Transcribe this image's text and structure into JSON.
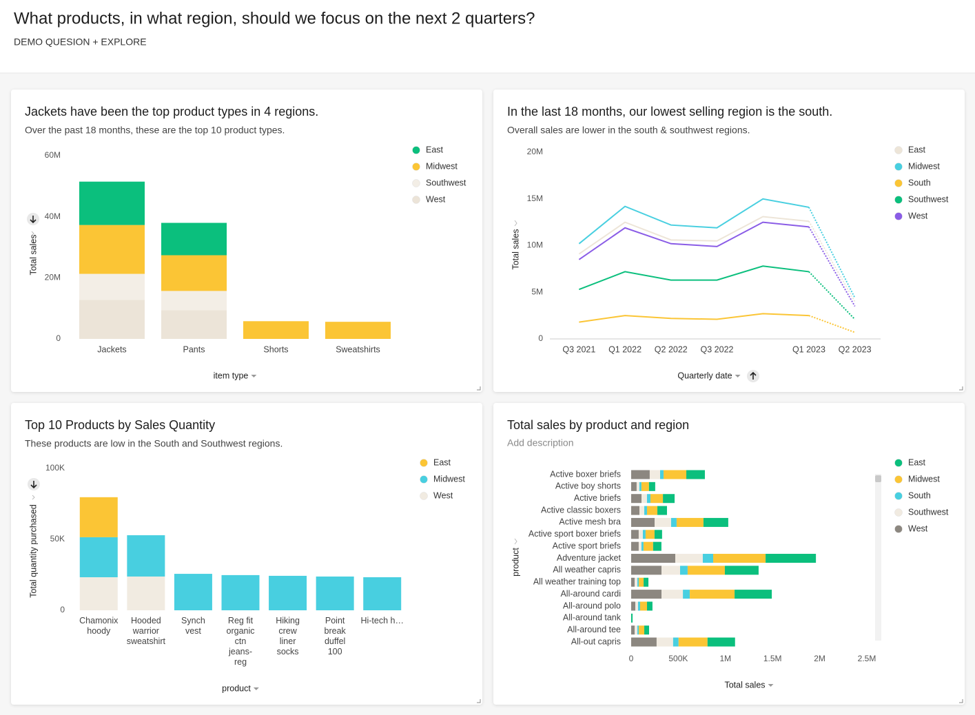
{
  "header": {
    "title": "What products, in what region, should we focus on the next 2 quarters?",
    "subtitle": "DEMO QUESION + EXPLORE"
  },
  "chart_data": [
    {
      "type": "bar",
      "stacked": true,
      "title": "Jackets have been the top product types in 4 regions.",
      "subtitle": "Over the past 18 months, these are the top 10 product types.",
      "x_label": "item type",
      "y_label": "Total sales",
      "categories": [
        "Jackets",
        "Pants",
        "Shorts",
        "Sweatshirts"
      ],
      "series": [
        {
          "name": "East",
          "color": "#0bbf7d",
          "values": [
            14200000,
            10600000,
            0,
            0
          ]
        },
        {
          "name": "Midwest",
          "color": "#fbc535",
          "values": [
            16000000,
            11700000,
            5800000,
            5600000
          ]
        },
        {
          "name": "Southwest",
          "color": "#f3eee6",
          "values": [
            8500000,
            6300000,
            0,
            0
          ]
        },
        {
          "name": "West",
          "color": "#ece4d8",
          "values": [
            12800000,
            9400000,
            0,
            0
          ]
        }
      ],
      "ylim": [
        0,
        60000000
      ],
      "yticks": [
        0,
        {
          "value": 20000000,
          "label": "20M"
        },
        {
          "value": 40000000,
          "label": "40M"
        },
        {
          "value": 60000000,
          "label": "60M"
        }
      ],
      "grid": false,
      "legend": "right"
    },
    {
      "type": "line",
      "title": "In the last 18 months, our lowest selling region is the south.",
      "subtitle": "Overall sales are lower in the south & southwest regions.",
      "x_label": "Quarterly date",
      "y_label": "Total sales",
      "categories": [
        "Q3 2021",
        "Q1 2022",
        "Q2 2022",
        "Q3 2022",
        null,
        "Q1 2023",
        "Q2 2023"
      ],
      "series": [
        {
          "name": "East",
          "color": "#ede5d8",
          "values": [
            9100000,
            12500000,
            10600000,
            10500000,
            13100000,
            12600000,
            4000000
          ]
        },
        {
          "name": "Midwest",
          "color": "#48cfe0",
          "values": [
            10200000,
            14200000,
            12200000,
            11900000,
            15000000,
            14100000,
            4400000
          ]
        },
        {
          "name": "South",
          "color": "#fbc535",
          "values": [
            1800000,
            2500000,
            2200000,
            2100000,
            2700000,
            2500000,
            700000
          ]
        },
        {
          "name": "Southwest",
          "color": "#0bbf7d",
          "values": [
            5300000,
            7200000,
            6300000,
            6300000,
            7800000,
            7200000,
            2100000
          ]
        },
        {
          "name": "West",
          "color": "#8a5ce6",
          "values": [
            8500000,
            11900000,
            10200000,
            9900000,
            12500000,
            12000000,
            3500000
          ]
        }
      ],
      "ylim": [
        0,
        20000000
      ],
      "yticks": [
        0,
        {
          "value": 5000000,
          "label": "5M"
        },
        {
          "value": 10000000,
          "label": "10M"
        },
        {
          "value": 15000000,
          "label": "15M"
        },
        {
          "value": 20000000,
          "label": "20M"
        }
      ],
      "grid": false,
      "legend": "right"
    },
    {
      "type": "bar",
      "stacked": true,
      "title": "Top 10 Products by Sales Quantity",
      "subtitle": "These products are low in the South and Southwest regions.",
      "x_label": "product",
      "y_label": "Total quantity purchased",
      "categories": [
        "Chamonix hoody",
        "Hooded warrior sweatshirt",
        "Synch vest",
        "Reg fit organic ctn jeans-reg",
        "Hiking crew liner socks",
        "Point break duffel 100",
        "Hi-tech h…"
      ],
      "series": [
        {
          "name": "East",
          "color": "#fbc535",
          "values": [
            28200,
            0,
            0,
            0,
            0,
            0,
            0
          ]
        },
        {
          "name": "Midwest",
          "color": "#48cfe0",
          "values": [
            28200,
            29100,
            25700,
            24800,
            24300,
            23800,
            23300
          ]
        },
        {
          "name": "West",
          "color": "#f1ebe1",
          "values": [
            23300,
            23800,
            0,
            0,
            0,
            0,
            0
          ]
        }
      ],
      "ylim": [
        0,
        100000
      ],
      "yticks": [
        0,
        {
          "value": 50000,
          "label": "50K"
        },
        {
          "value": 100000,
          "label": "100K"
        }
      ],
      "grid": false,
      "legend": "right"
    },
    {
      "type": "bar",
      "stacked": true,
      "orientation": "horizontal",
      "title": "Total sales by product and region",
      "description": "Add description",
      "x_label": "Total sales",
      "y_label": "product",
      "categories": [
        "Active boxer briefs",
        "Active boy shorts",
        "Active briefs",
        "Active classic boxers",
        "Active mesh bra",
        "Active sport boxer briefs",
        "Active sport briefs",
        "Adventure jacket",
        "All weather capris",
        "All weather training top",
        "All-around cardi",
        "All-around polo",
        "All-around tank",
        "All-around tee",
        "All-out capris"
      ],
      "series": [
        {
          "name": "East",
          "color": "#0bbf7d",
          "values": [
            197000,
            66000,
            124000,
            102000,
            263000,
            80000,
            88000,
            534000,
            358000,
            51000,
            395000,
            58000,
            15000,
            51000,
            292000
          ]
        },
        {
          "name": "Midwest",
          "color": "#fbc535",
          "values": [
            241000,
            80000,
            132000,
            110000,
            285000,
            95000,
            102000,
            556000,
            395000,
            51000,
            475000,
            73000,
            0,
            58000,
            307000
          ]
        },
        {
          "name": "South",
          "color": "#48cfe0",
          "values": [
            37000,
            22000,
            37000,
            29000,
            58000,
            29000,
            22000,
            110000,
            80000,
            15000,
            73000,
            22000,
            0,
            15000,
            58000
          ]
        },
        {
          "name": "Southwest",
          "color": "#f1ebe1",
          "values": [
            110000,
            29000,
            58000,
            51000,
            175000,
            44000,
            29000,
            292000,
            197000,
            29000,
            227000,
            29000,
            0,
            29000,
            175000
          ]
        },
        {
          "name": "West",
          "color": "#8c8780",
          "values": [
            197000,
            58000,
            110000,
            88000,
            249000,
            80000,
            80000,
            468000,
            322000,
            37000,
            322000,
            44000,
            0,
            37000,
            270000
          ]
        }
      ],
      "xlim": [
        0,
        2500000
      ],
      "xticks": [
        0,
        {
          "value": 500000,
          "label": "500K"
        },
        {
          "value": 1000000,
          "label": "1M"
        },
        {
          "value": 1500000,
          "label": "1.5M"
        },
        {
          "value": 2000000,
          "label": "2M"
        },
        {
          "value": 2500000,
          "label": "2.5M"
        }
      ],
      "grid": false,
      "legend": "right"
    }
  ]
}
